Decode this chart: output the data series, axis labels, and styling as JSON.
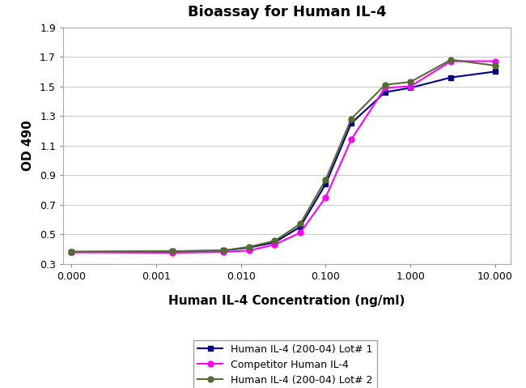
{
  "title": "Bioassay for Human IL-4",
  "xlabel": "Human IL-4 Concentration (ng/ml)",
  "ylabel": "OD 490",
  "ylim": [
    0.3,
    1.9
  ],
  "yticks": [
    0.3,
    0.5,
    0.7,
    0.9,
    1.1,
    1.3,
    1.5,
    1.7,
    1.9
  ],
  "xtick_positions": [
    0.0001,
    0.001,
    0.01,
    0.1,
    1.0,
    10.0
  ],
  "xtick_labels": [
    "0.000",
    "0.001",
    "0.010",
    "0.100",
    "1.000",
    "10.000"
  ],
  "series": [
    {
      "label": "Human IL-4 (200-04) Lot# 1",
      "color": "#00008B",
      "marker": "s",
      "x": [
        0.0001,
        0.00156,
        0.00625,
        0.0125,
        0.025,
        0.05,
        0.1,
        0.2,
        0.5,
        1.0,
        3.0,
        10.0
      ],
      "y": [
        0.38,
        0.385,
        0.39,
        0.41,
        0.445,
        0.55,
        0.84,
        1.25,
        1.46,
        1.49,
        1.56,
        1.6
      ]
    },
    {
      "label": "Competitor Human IL-4",
      "color": "#FF00FF",
      "marker": "o",
      "x": [
        0.0001,
        0.00156,
        0.00625,
        0.0125,
        0.025,
        0.05,
        0.1,
        0.2,
        0.5,
        1.0,
        3.0,
        10.0
      ],
      "y": [
        0.378,
        0.375,
        0.38,
        0.39,
        0.43,
        0.51,
        0.75,
        1.14,
        1.49,
        1.5,
        1.67,
        1.67
      ]
    },
    {
      "label": "Human IL-4 (200-04) Lot# 2",
      "color": "#556B2F",
      "marker": "o",
      "x": [
        0.0001,
        0.00156,
        0.00625,
        0.0125,
        0.025,
        0.05,
        0.1,
        0.2,
        0.5,
        1.0,
        3.0,
        10.0
      ],
      "y": [
        0.383,
        0.385,
        0.39,
        0.415,
        0.455,
        0.57,
        0.87,
        1.28,
        1.51,
        1.53,
        1.68,
        1.64
      ]
    }
  ],
  "background_color": "#ffffff",
  "plot_bg_color": "#ffffff",
  "grid_color": "#cccccc",
  "title_fontsize": 13,
  "label_fontsize": 11,
  "tick_fontsize": 9,
  "legend_fontsize": 9
}
